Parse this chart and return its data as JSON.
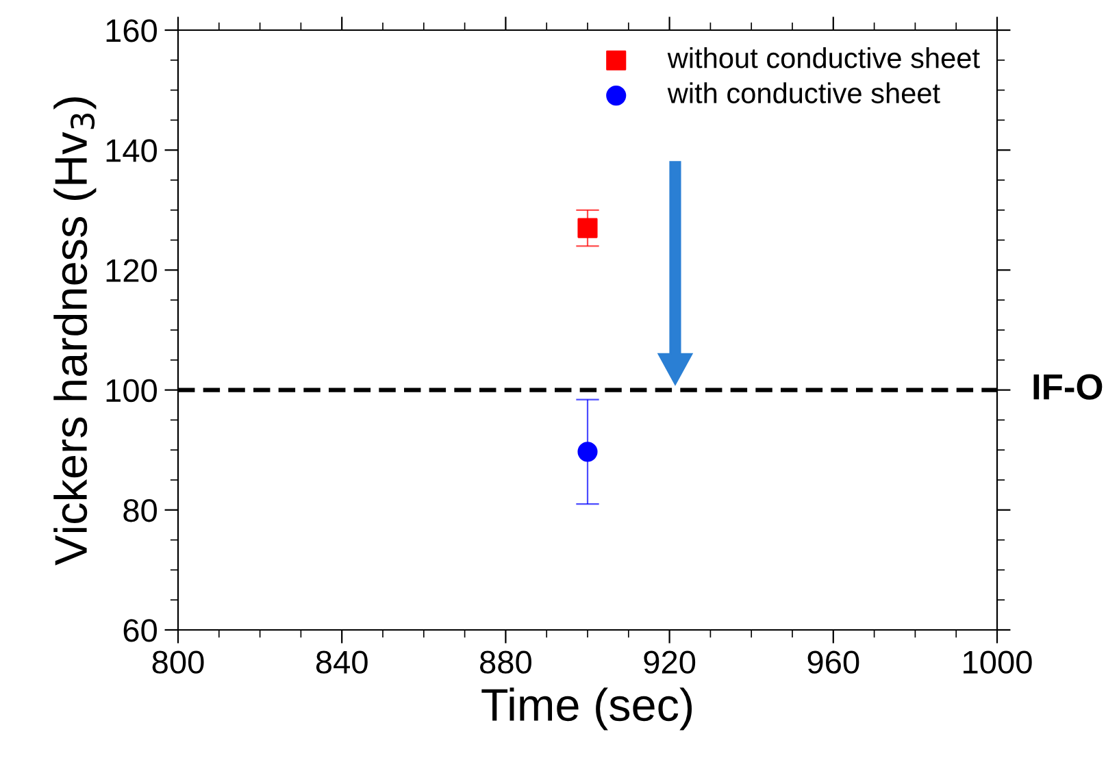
{
  "chart_data": {
    "type": "scatter",
    "xlabel": "Time (sec)",
    "ylabel": "Vickers hardness (Hv$_{3}$)",
    "xlim": [
      800,
      1000
    ],
    "xticks": [
      800,
      840,
      880,
      920,
      960,
      1000
    ],
    "ylim": [
      60,
      160
    ],
    "yticks": [
      60,
      80,
      100,
      120,
      140,
      160
    ],
    "series": [
      {
        "name": "without conductive sheet",
        "color": "#ff0000",
        "marker": "square",
        "x": [
          900
        ],
        "values": [
          127
        ],
        "errors": [
          3
        ]
      },
      {
        "name": "with conductive sheet",
        "color": "#0000ff",
        "marker": "circle",
        "x": [
          900
        ],
        "values": [
          89.7
        ],
        "errors": [
          8.7
        ]
      }
    ],
    "ref_lines": [
      {
        "axis": "y",
        "value": 100,
        "label": "IF-O",
        "color": "#000000",
        "line_style": "dashed"
      }
    ],
    "legend": "top right",
    "grid": false
  }
}
